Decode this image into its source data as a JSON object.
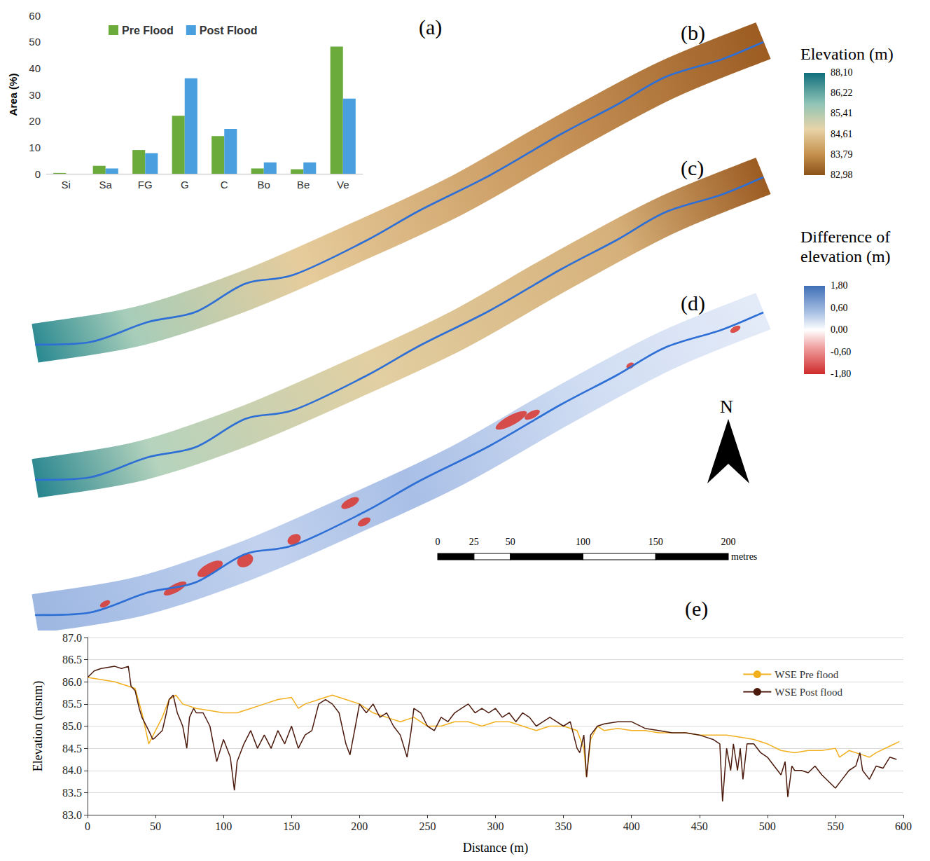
{
  "chart_data": [
    {
      "type": "bar",
      "annotations": [
        "(a)"
      ],
      "y_label": "Area (%)",
      "categories": [
        "Si",
        "Sa",
        "FG",
        "G",
        "C",
        "Bo",
        "Be",
        "Ve"
      ],
      "series": [
        {
          "name": "Pre Flood",
          "color": "#6aab3c",
          "values": [
            0.3,
            3,
            9,
            22,
            14.3,
            2,
            1.7,
            48.2
          ]
        },
        {
          "name": "Post Flood",
          "color": "#4aa0de",
          "values": [
            0,
            2,
            7.8,
            36.2,
            17,
            4.3,
            4.3,
            28.5
          ]
        }
      ],
      "ylim": [
        0,
        60
      ],
      "yticks": [
        0,
        10,
        20,
        30,
        40,
        50,
        60
      ],
      "grid": false,
      "legend": "top"
    },
    {
      "type": "line",
      "annotations": [
        "(e)"
      ],
      "x_label": "Distance (m)",
      "y_label": "Elevation (msnm)",
      "series": [
        {
          "name": "WSE Pre flood",
          "color": "#f2b01e",
          "x": [
            0,
            10,
            20,
            30,
            35,
            40,
            45,
            50,
            55,
            60,
            65,
            70,
            80,
            90,
            100,
            110,
            120,
            130,
            140,
            150,
            155,
            160,
            170,
            180,
            190,
            200,
            210,
            220,
            230,
            240,
            250,
            260,
            270,
            280,
            290,
            300,
            310,
            320,
            330,
            340,
            350,
            360,
            365,
            367,
            370,
            375,
            380,
            390,
            400,
            410,
            420,
            430,
            440,
            450,
            460,
            470,
            480,
            490,
            500,
            510,
            520,
            530,
            540,
            550,
            553,
            560,
            570,
            575,
            580,
            590,
            597
          ],
          "values": [
            86.1,
            86.05,
            86.0,
            85.9,
            85.85,
            85.3,
            84.6,
            84.9,
            85.2,
            85.6,
            85.7,
            85.5,
            85.4,
            85.35,
            85.3,
            85.3,
            85.4,
            85.5,
            85.6,
            85.65,
            85.4,
            85.5,
            85.6,
            85.7,
            85.6,
            85.5,
            85.3,
            85.2,
            85.1,
            85.2,
            85.0,
            85.0,
            85.1,
            85.1,
            85.0,
            85.1,
            85.1,
            85.0,
            84.9,
            85.0,
            85.0,
            84.9,
            84.5,
            83.85,
            84.7,
            85.0,
            84.9,
            84.95,
            84.9,
            84.9,
            84.85,
            84.85,
            84.85,
            84.8,
            84.8,
            84.8,
            84.75,
            84.7,
            84.6,
            84.45,
            84.4,
            84.45,
            84.45,
            84.5,
            84.3,
            84.45,
            84.35,
            84.3,
            84.4,
            84.55,
            84.65
          ]
        },
        {
          "name": "WSE Post flood",
          "color": "#4b1a0c",
          "x": [
            0,
            5,
            10,
            20,
            25,
            30,
            32,
            35,
            38,
            40,
            45,
            48,
            50,
            55,
            58,
            60,
            63,
            66,
            70,
            73,
            75,
            78,
            80,
            85,
            90,
            95,
            100,
            105,
            108,
            110,
            115,
            120,
            125,
            130,
            135,
            140,
            145,
            150,
            155,
            160,
            165,
            170,
            175,
            180,
            185,
            190,
            193,
            197,
            200,
            205,
            210,
            215,
            220,
            225,
            230,
            235,
            238,
            240,
            245,
            250,
            255,
            260,
            265,
            270,
            275,
            280,
            285,
            290,
            295,
            300,
            305,
            310,
            315,
            320,
            325,
            330,
            335,
            340,
            345,
            350,
            355,
            360,
            362,
            365,
            367,
            370,
            375,
            380,
            390,
            400,
            410,
            420,
            430,
            440,
            450,
            460,
            465,
            467,
            470,
            473,
            475,
            478,
            480,
            482,
            485,
            490,
            495,
            500,
            505,
            510,
            513,
            515,
            518,
            520,
            525,
            530,
            535,
            540,
            545,
            550,
            555,
            560,
            565,
            568,
            570,
            575,
            580,
            585,
            590,
            595
          ],
          "values": [
            86.1,
            86.25,
            86.3,
            86.35,
            86.3,
            86.35,
            85.9,
            85.8,
            85.4,
            85.2,
            84.9,
            84.7,
            84.75,
            84.9,
            85.3,
            85.6,
            85.7,
            85.3,
            85.0,
            84.5,
            85.2,
            85.4,
            85.3,
            85.3,
            85.0,
            84.2,
            84.7,
            84.3,
            83.55,
            84.2,
            84.6,
            84.9,
            84.5,
            84.8,
            84.5,
            84.9,
            84.6,
            85.0,
            84.5,
            84.8,
            84.9,
            85.5,
            85.6,
            85.5,
            85.3,
            84.6,
            84.35,
            85.0,
            85.5,
            85.3,
            85.5,
            85.2,
            85.3,
            85.0,
            84.8,
            84.3,
            84.9,
            85.4,
            85.3,
            85.0,
            84.9,
            85.2,
            85.1,
            85.3,
            85.4,
            85.5,
            85.3,
            85.4,
            85.3,
            85.4,
            85.2,
            85.3,
            85.1,
            85.3,
            85.2,
            85.0,
            85.1,
            85.2,
            85.1,
            85.0,
            85.1,
            84.5,
            84.4,
            84.8,
            83.85,
            84.8,
            85.0,
            85.05,
            85.1,
            85.1,
            84.95,
            84.9,
            84.85,
            84.85,
            84.8,
            84.7,
            84.6,
            83.3,
            84.5,
            84.0,
            84.6,
            84.0,
            84.5,
            83.8,
            84.6,
            84.6,
            84.4,
            84.3,
            84.1,
            83.9,
            84.2,
            83.4,
            84.1,
            84.0,
            84.0,
            83.95,
            84.1,
            83.9,
            83.75,
            83.6,
            83.8,
            84.0,
            84.1,
            84.4,
            84.0,
            83.8,
            84.1,
            84.05,
            84.3,
            84.25
          ]
        }
      ],
      "xlim": [
        0,
        600
      ],
      "xticks": [
        0,
        50,
        100,
        150,
        200,
        250,
        300,
        350,
        400,
        450,
        500,
        550,
        600
      ],
      "ylim": [
        83,
        87
      ],
      "yticks": [
        {
          "value": 83,
          "label": "83.0"
        },
        {
          "value": 83.5,
          "label": "83.5"
        },
        {
          "value": 84,
          "label": "84.0"
        },
        {
          "value": 84.5,
          "label": "84.5"
        },
        {
          "value": 85,
          "label": "85.0"
        },
        {
          "value": 85.5,
          "label": "85.5"
        },
        {
          "value": 86,
          "label": "86.0"
        },
        {
          "value": 86.5,
          "label": "86.5"
        },
        {
          "value": 87,
          "label": "87.0"
        }
      ],
      "grid": true,
      "legend": "top-right"
    }
  ],
  "maps": {
    "panels": [
      "(b)",
      "(c)",
      "(d)"
    ],
    "elevation_legend": {
      "title": "Elevation (m)",
      "ticks": [
        {
          "value": 88.1,
          "label": "88,10"
        },
        {
          "value": 86.22,
          "label": "86,22"
        },
        {
          "value": 85.41,
          "label": "85,41"
        },
        {
          "value": 84.61,
          "label": "84,61"
        },
        {
          "value": 83.79,
          "label": "83,79"
        },
        {
          "value": 82.98,
          "label": "82,98"
        }
      ]
    },
    "difference_legend": {
      "title": "Difference of elevation (m)",
      "ticks": [
        {
          "value": 1.8,
          "label": "1,80"
        },
        {
          "value": 0.6,
          "label": "0,60"
        },
        {
          "value": 0.0,
          "label": "0,00"
        },
        {
          "value": -0.6,
          "label": "-0,60"
        },
        {
          "value": -1.8,
          "label": "-1,80"
        }
      ]
    },
    "north": "N",
    "scale_bar": {
      "ticks": [
        0,
        25,
        50,
        100,
        150,
        200
      ],
      "unit": "metres"
    }
  }
}
